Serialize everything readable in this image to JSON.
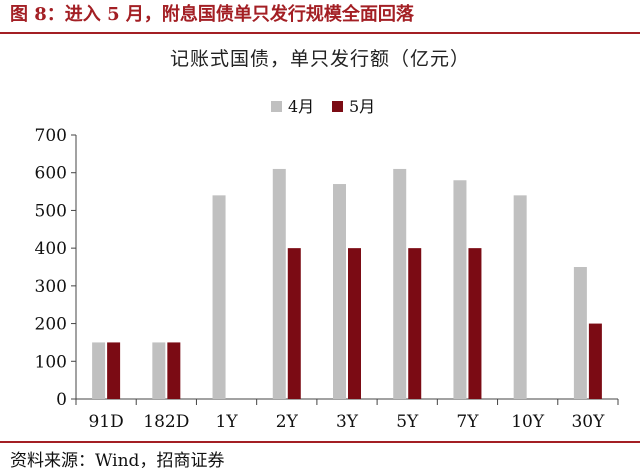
{
  "figure": {
    "label": "图 8",
    "separator": "：",
    "caption": "进入 5 月，附息国债单只发行规模全面回落"
  },
  "source": "资料来源：Wind，招商证券",
  "colors": {
    "header": "#a31f24",
    "series_april": "#c0c0c0",
    "series_may": "#7b0b14"
  },
  "chart_data": {
    "type": "bar",
    "title": "记账式国债，单只发行额（亿元）",
    "xlabel": "",
    "ylabel": "",
    "categories": [
      "91D",
      "182D",
      "1Y",
      "2Y",
      "3Y",
      "5Y",
      "7Y",
      "10Y",
      "30Y"
    ],
    "series": [
      {
        "name": "4月",
        "values": [
          150,
          150,
          540,
          610,
          570,
          610,
          580,
          540,
          350
        ],
        "color": "#c0c0c0"
      },
      {
        "name": "5月",
        "values": [
          150,
          150,
          null,
          400,
          400,
          400,
          400,
          null,
          200
        ],
        "color": "#7b0b14"
      }
    ],
    "ylim": [
      0,
      700
    ],
    "yticks": [
      0,
      100,
      200,
      300,
      400,
      500,
      600,
      700
    ],
    "grid": false,
    "legend": "top-center"
  }
}
